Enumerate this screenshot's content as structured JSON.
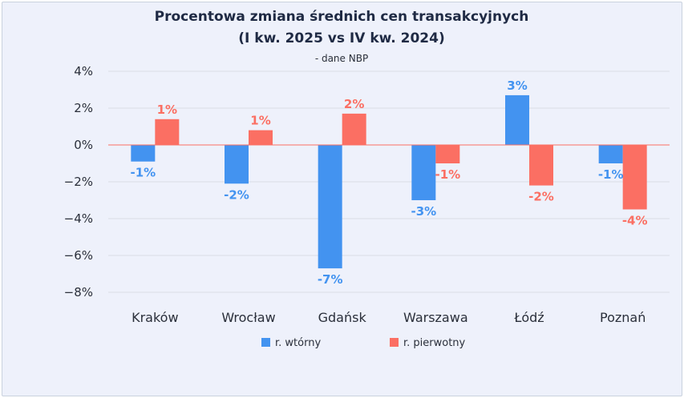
{
  "chart_data": {
    "type": "bar",
    "title_lines": [
      "Procentowa zmiana średnich cen transakcyjnych",
      "(I kw. 2025 vs IV kw. 2024)"
    ],
    "subtitle": "- dane NBP",
    "categories": [
      "Kraków",
      "Wrocław",
      "Gdańsk",
      "Warszawa",
      "Łódź",
      "Poznań"
    ],
    "series": [
      {
        "name": "r. wtórny",
        "color": "#4393f0",
        "values": [
          -0.9,
          -2.1,
          -6.7,
          -3.0,
          2.7,
          -1.0
        ],
        "labels": [
          "-1%",
          "-2%",
          "-7%",
          "-3%",
          "3%",
          "-1%"
        ]
      },
      {
        "name": "r. pierwotny",
        "color": "#fb6f63",
        "values": [
          1.4,
          0.8,
          1.7,
          -1.0,
          -2.2,
          -3.5
        ],
        "labels": [
          "1%",
          "1%",
          "2%",
          "-1%",
          "-2%",
          "-4%"
        ]
      }
    ],
    "yticks": [
      "4%",
      "2%",
      "0%",
      "−2%",
      "−4%",
      "−6%",
      "−8%"
    ],
    "ytick_values": [
      4,
      2,
      0,
      -2,
      -4,
      -6,
      -8
    ],
    "ylim": [
      -8,
      4
    ],
    "grid": true,
    "zero_line_color": "#fb6f63",
    "legend_position": "bottom"
  }
}
